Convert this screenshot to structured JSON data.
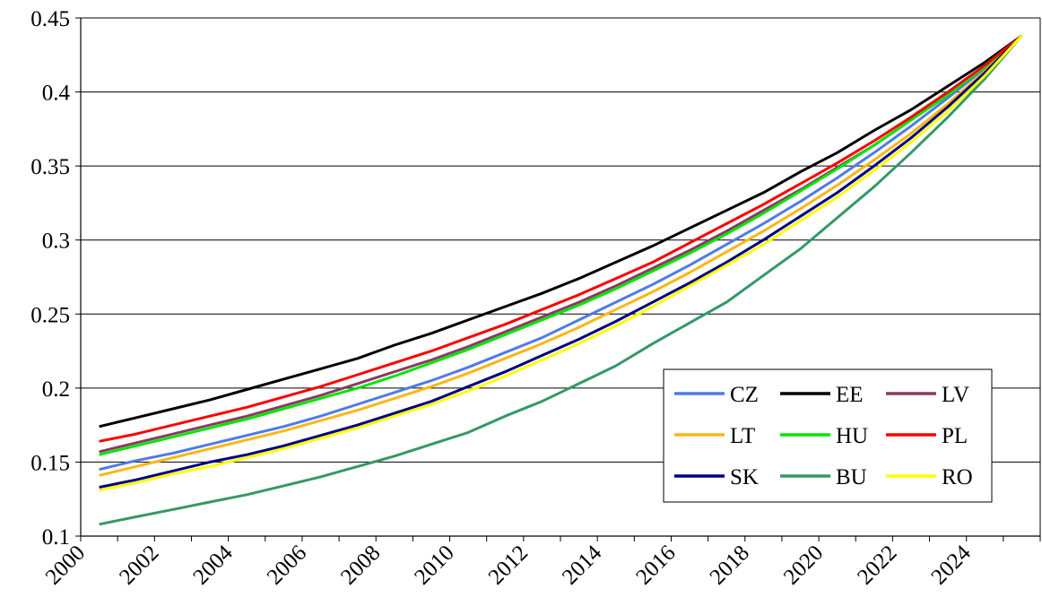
{
  "chart_data": {
    "type": "line",
    "title": "",
    "xlabel": "",
    "ylabel": "",
    "ylim": [
      0.1,
      0.45
    ],
    "xlim": [
      2000,
      2026
    ],
    "yticks": [
      "0.1",
      "0.15",
      "0.2",
      "0.25",
      "0.3",
      "0.35",
      "0.4",
      "0.45"
    ],
    "xticks": [
      "2000",
      "2002",
      "2004",
      "2006",
      "2008",
      "2010",
      "2012",
      "2014",
      "2016",
      "2018",
      "2020",
      "2022",
      "2024"
    ],
    "grid": "horizontal",
    "legend": "lower-right",
    "x": [
      2000.5,
      2001.5,
      2002.5,
      2003.5,
      2004.5,
      2005.5,
      2006.5,
      2007.5,
      2008.5,
      2009.5,
      2010.5,
      2011.5,
      2012.5,
      2013.5,
      2014.5,
      2015.5,
      2016.5,
      2017.5,
      2018.5,
      2019.5,
      2020.5,
      2021.5,
      2022.5,
      2023.5,
      2024.5,
      2025.5
    ],
    "series": [
      {
        "name": "CZ",
        "color": "#4F7BE8",
        "values": [
          0.145,
          0.151,
          0.156,
          0.162,
          0.168,
          0.174,
          0.181,
          0.189,
          0.197,
          0.205,
          0.214,
          0.224,
          0.234,
          0.246,
          0.258,
          0.27,
          0.283,
          0.297,
          0.311,
          0.326,
          0.342,
          0.359,
          0.377,
          0.396,
          0.416,
          0.438
        ]
      },
      {
        "name": "EE",
        "color": "#000000",
        "values": [
          0.174,
          0.18,
          0.186,
          0.192,
          0.199,
          0.206,
          0.213,
          0.22,
          0.229,
          0.237,
          0.246,
          0.255,
          0.264,
          0.274,
          0.285,
          0.296,
          0.308,
          0.32,
          0.332,
          0.346,
          0.359,
          0.374,
          0.388,
          0.404,
          0.42,
          0.438
        ]
      },
      {
        "name": "LV",
        "color": "#8B3A62",
        "values": [
          0.157,
          0.163,
          0.169,
          0.175,
          0.181,
          0.188,
          0.195,
          0.203,
          0.211,
          0.219,
          0.228,
          0.238,
          0.248,
          0.258,
          0.269,
          0.281,
          0.293,
          0.306,
          0.32,
          0.334,
          0.349,
          0.364,
          0.381,
          0.398,
          0.417,
          0.438
        ]
      },
      {
        "name": "LT",
        "color": "#FFB612",
        "values": [
          0.141,
          0.147,
          0.153,
          0.159,
          0.165,
          0.171,
          0.178,
          0.185,
          0.193,
          0.201,
          0.21,
          0.22,
          0.23,
          0.241,
          0.253,
          0.265,
          0.278,
          0.292,
          0.306,
          0.321,
          0.337,
          0.354,
          0.372,
          0.392,
          0.414,
          0.438
        ]
      },
      {
        "name": "HU",
        "color": "#00E600",
        "values": [
          0.155,
          0.161,
          0.167,
          0.173,
          0.179,
          0.186,
          0.193,
          0.2,
          0.208,
          0.217,
          0.226,
          0.236,
          0.246,
          0.256,
          0.267,
          0.279,
          0.291,
          0.304,
          0.318,
          0.333,
          0.348,
          0.364,
          0.381,
          0.398,
          0.417,
          0.438
        ]
      },
      {
        "name": "PL",
        "color": "#FF0000",
        "values": [
          0.164,
          0.169,
          0.175,
          0.181,
          0.187,
          0.194,
          0.201,
          0.209,
          0.217,
          0.225,
          0.234,
          0.243,
          0.253,
          0.263,
          0.274,
          0.285,
          0.298,
          0.311,
          0.324,
          0.338,
          0.352,
          0.367,
          0.383,
          0.4,
          0.418,
          0.438
        ]
      },
      {
        "name": "SK",
        "color": "#000080",
        "values": [
          0.133,
          0.138,
          0.144,
          0.15,
          0.155,
          0.161,
          0.168,
          0.175,
          0.183,
          0.191,
          0.201,
          0.211,
          0.222,
          0.233,
          0.245,
          0.258,
          0.271,
          0.285,
          0.3,
          0.316,
          0.332,
          0.35,
          0.369,
          0.39,
          0.413,
          0.438
        ]
      },
      {
        "name": "BU",
        "color": "#339966",
        "values": [
          0.108,
          0.113,
          0.118,
          0.123,
          0.128,
          0.134,
          0.14,
          0.147,
          0.154,
          0.162,
          0.17,
          0.181,
          0.191,
          0.203,
          0.215,
          0.23,
          0.244,
          0.258,
          0.276,
          0.294,
          0.315,
          0.336,
          0.359,
          0.383,
          0.409,
          0.438
        ]
      },
      {
        "name": "RO",
        "color": "#FFFF00",
        "values": [
          0.131,
          0.136,
          0.142,
          0.147,
          0.153,
          0.159,
          0.166,
          0.173,
          0.181,
          0.189,
          0.198,
          0.208,
          0.219,
          0.23,
          0.242,
          0.255,
          0.269,
          0.283,
          0.297,
          0.313,
          0.329,
          0.347,
          0.366,
          0.387,
          0.411,
          0.438
        ]
      }
    ]
  }
}
